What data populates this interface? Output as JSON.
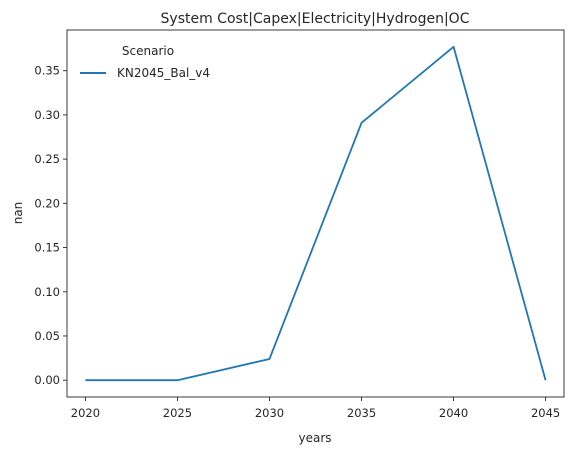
{
  "chart_data": {
    "type": "line",
    "title": "System Cost|Capex|Electricity|Hydrogen|OC",
    "xlabel": "years",
    "ylabel": "nan",
    "x": [
      2020,
      2025,
      2030,
      2035,
      2040,
      2045
    ],
    "series": [
      {
        "name": "KN2045_Bal_v4",
        "values": [
          0.0,
          0.0,
          0.024,
          0.291,
          0.377,
          0.0
        ],
        "color": "#1f77b4"
      }
    ],
    "xticks": [
      "2020",
      "2025",
      "2030",
      "2035",
      "2040",
      "2045"
    ],
    "yticks": [
      "0.00",
      "0.05",
      "0.10",
      "0.15",
      "0.20",
      "0.25",
      "0.30",
      "0.35"
    ],
    "xlim": [
      2019,
      2046
    ],
    "ylim": [
      -0.019,
      0.396
    ],
    "grid": false,
    "legend": {
      "title": "Scenario",
      "placement": "top-left"
    }
  }
}
